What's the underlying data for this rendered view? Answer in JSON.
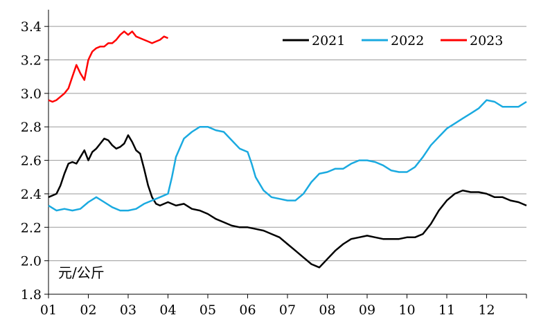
{
  "chart_data": {
    "type": "line",
    "unit_label": "元/公斤",
    "ylim": [
      1.8,
      3.5
    ],
    "y_ticks": [
      "1.8",
      "2.0",
      "2.2",
      "2.4",
      "2.6",
      "2.8",
      "3.0",
      "3.2",
      "3.4"
    ],
    "x_ticks": [
      "01",
      "02",
      "03",
      "04",
      "05",
      "06",
      "07",
      "08",
      "09",
      "10",
      "11",
      "12"
    ],
    "x_unit": "month",
    "xlim": [
      1,
      13
    ],
    "grid": "horizontal",
    "legend_position": "top-right",
    "series": [
      {
        "name": "2021",
        "color": "#000000",
        "x": [
          1.0,
          1.1,
          1.2,
          1.3,
          1.4,
          1.5,
          1.6,
          1.7,
          1.8,
          1.9,
          2.0,
          2.1,
          2.2,
          2.3,
          2.4,
          2.5,
          2.6,
          2.7,
          2.8,
          2.9,
          3.0,
          3.1,
          3.2,
          3.3,
          3.4,
          3.5,
          3.6,
          3.7,
          3.8,
          3.9,
          4.0,
          4.2,
          4.4,
          4.6,
          4.8,
          5.0,
          5.2,
          5.4,
          5.6,
          5.8,
          6.0,
          6.2,
          6.4,
          6.6,
          6.8,
          7.0,
          7.2,
          7.4,
          7.6,
          7.8,
          8.0,
          8.2,
          8.4,
          8.6,
          8.8,
          9.0,
          9.2,
          9.4,
          9.6,
          9.8,
          10.0,
          10.2,
          10.4,
          10.6,
          10.8,
          11.0,
          11.2,
          11.4,
          11.6,
          11.8,
          12.0,
          12.2,
          12.4,
          12.6,
          12.8,
          13.0
        ],
        "y": [
          2.38,
          2.39,
          2.4,
          2.45,
          2.52,
          2.58,
          2.59,
          2.58,
          2.62,
          2.66,
          2.6,
          2.65,
          2.67,
          2.7,
          2.73,
          2.72,
          2.69,
          2.67,
          2.68,
          2.7,
          2.75,
          2.71,
          2.66,
          2.64,
          2.55,
          2.45,
          2.38,
          2.34,
          2.33,
          2.34,
          2.35,
          2.33,
          2.34,
          2.31,
          2.3,
          2.28,
          2.25,
          2.23,
          2.21,
          2.2,
          2.2,
          2.19,
          2.18,
          2.16,
          2.14,
          2.1,
          2.06,
          2.02,
          1.98,
          1.96,
          2.01,
          2.06,
          2.1,
          2.13,
          2.14,
          2.15,
          2.14,
          2.13,
          2.13,
          2.13,
          2.14,
          2.14,
          2.16,
          2.22,
          2.3,
          2.36,
          2.4,
          2.42,
          2.41,
          2.41,
          2.4,
          2.38,
          2.38,
          2.36,
          2.35,
          2.33
        ]
      },
      {
        "name": "2022",
        "color": "#1AAAE0",
        "x": [
          1.0,
          1.2,
          1.4,
          1.6,
          1.8,
          2.0,
          2.2,
          2.4,
          2.6,
          2.8,
          3.0,
          3.2,
          3.4,
          3.6,
          3.8,
          4.0,
          4.1,
          4.2,
          4.4,
          4.6,
          4.8,
          5.0,
          5.2,
          5.4,
          5.6,
          5.8,
          6.0,
          6.1,
          6.2,
          6.4,
          6.6,
          6.8,
          7.0,
          7.2,
          7.4,
          7.6,
          7.8,
          8.0,
          8.2,
          8.4,
          8.6,
          8.8,
          9.0,
          9.2,
          9.4,
          9.6,
          9.8,
          10.0,
          10.2,
          10.4,
          10.6,
          10.8,
          11.0,
          11.2,
          11.4,
          11.6,
          11.8,
          12.0,
          12.2,
          12.4,
          12.6,
          12.8,
          13.0
        ],
        "y": [
          2.33,
          2.3,
          2.31,
          2.3,
          2.31,
          2.35,
          2.38,
          2.35,
          2.32,
          2.3,
          2.3,
          2.31,
          2.34,
          2.36,
          2.38,
          2.4,
          2.5,
          2.62,
          2.73,
          2.77,
          2.8,
          2.8,
          2.78,
          2.77,
          2.72,
          2.67,
          2.65,
          2.58,
          2.5,
          2.42,
          2.38,
          2.37,
          2.36,
          2.36,
          2.4,
          2.47,
          2.52,
          2.53,
          2.55,
          2.55,
          2.58,
          2.6,
          2.6,
          2.59,
          2.57,
          2.54,
          2.53,
          2.53,
          2.56,
          2.62,
          2.69,
          2.74,
          2.79,
          2.82,
          2.85,
          2.88,
          2.91,
          2.96,
          2.95,
          2.92,
          2.92,
          2.92,
          2.95
        ]
      },
      {
        "name": "2023",
        "color": "#FF0000",
        "x": [
          1.0,
          1.1,
          1.2,
          1.3,
          1.4,
          1.5,
          1.6,
          1.7,
          1.8,
          1.9,
          2.0,
          2.1,
          2.2,
          2.3,
          2.4,
          2.5,
          2.6,
          2.7,
          2.8,
          2.9,
          3.0,
          3.1,
          3.2,
          3.3,
          3.4,
          3.5,
          3.6,
          3.7,
          3.8,
          3.9,
          4.0
        ],
        "y": [
          2.96,
          2.95,
          2.96,
          2.98,
          3.0,
          3.03,
          3.1,
          3.17,
          3.12,
          3.08,
          3.2,
          3.25,
          3.27,
          3.28,
          3.28,
          3.3,
          3.3,
          3.32,
          3.35,
          3.37,
          3.35,
          3.37,
          3.34,
          3.33,
          3.32,
          3.31,
          3.3,
          3.31,
          3.32,
          3.34,
          3.33
        ]
      }
    ]
  }
}
